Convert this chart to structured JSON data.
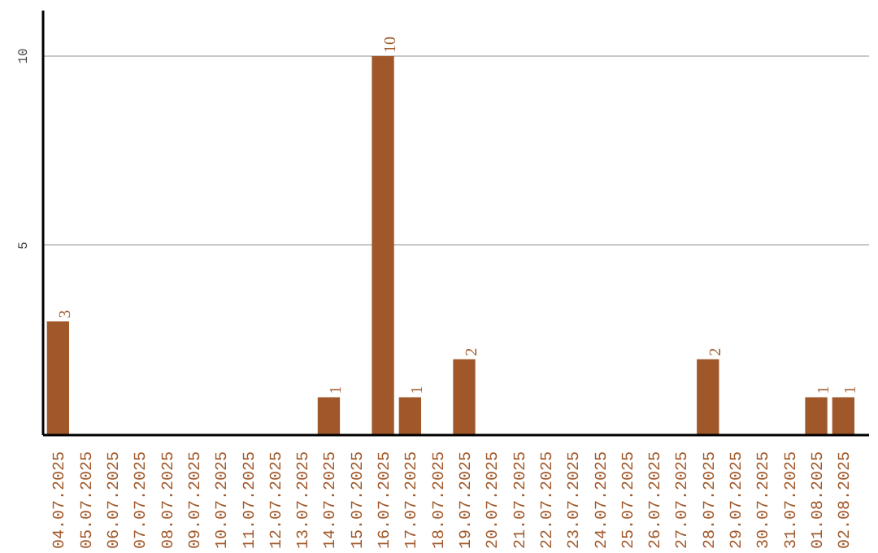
{
  "chart_data": {
    "type": "bar",
    "categories": [
      "04.07.2025",
      "05.07.2025",
      "06.07.2025",
      "07.07.2025",
      "08.07.2025",
      "09.07.2025",
      "10.07.2025",
      "11.07.2025",
      "12.07.2025",
      "13.07.2025",
      "14.07.2025",
      "15.07.2025",
      "16.07.2025",
      "17.07.2025",
      "18.07.2025",
      "19.07.2025",
      "20.07.2025",
      "21.07.2025",
      "22.07.2025",
      "23.07.2025",
      "24.07.2025",
      "25.07.2025",
      "26.07.2025",
      "27.07.2025",
      "28.07.2025",
      "29.07.2025",
      "30.07.2025",
      "31.07.2025",
      "01.08.2025",
      "02.08.2025"
    ],
    "values": [
      3,
      0,
      0,
      0,
      0,
      0,
      0,
      0,
      0,
      0,
      1,
      0,
      10,
      1,
      0,
      2,
      0,
      0,
      0,
      0,
      0,
      0,
      0,
      0,
      2,
      0,
      0,
      0,
      1,
      1
    ],
    "value_labels": [
      "3",
      null,
      null,
      null,
      null,
      null,
      null,
      null,
      null,
      null,
      "1",
      null,
      "10",
      "1",
      null,
      "2",
      null,
      null,
      null,
      null,
      null,
      null,
      null,
      null,
      "2",
      null,
      null,
      null,
      "1",
      "1"
    ],
    "color": "#a0582a",
    "ylim": [
      0,
      11.2
    ],
    "yticks": [
      5,
      10
    ],
    "grid": "y"
  }
}
